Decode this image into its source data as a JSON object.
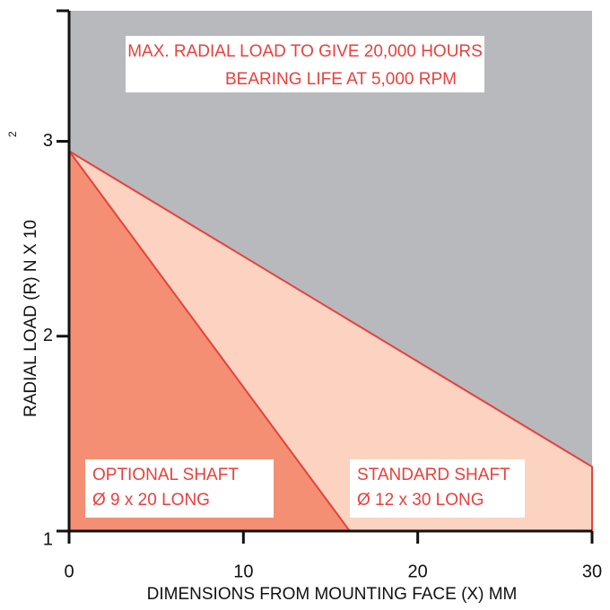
{
  "chart_data": {
    "type": "area",
    "title": [
      "MAX. RADIAL LOAD TO GIVE 20,000 HOURS",
      "BEARING LIFE AT 5,000 RPM"
    ],
    "xlabel": "DIMENSIONS FROM MOUNTING FACE (X) MM",
    "ylabel": "RADIAL LOAD (R)   N X 10",
    "ylabel_exponent": "2",
    "background_color": "#b8b9bd",
    "line_color": "#e8403c",
    "xlim": [
      0,
      30
    ],
    "xticks": [
      0,
      10,
      20,
      30
    ],
    "ylim": [
      1,
      3.67
    ],
    "yticks": [
      1,
      2,
      3
    ],
    "series": [
      {
        "name": "STANDARD SHAFT",
        "note": "Ø 12 x 30 LONG",
        "color": "#fcd3c1",
        "x": [
          0,
          30
        ],
        "values": [
          2.95,
          1.33
        ]
      },
      {
        "name": "OPTIONAL SHAFT",
        "note": "Ø 9 x 20 LONG",
        "color": "#f48f73",
        "x": [
          0,
          16.1
        ],
        "values": [
          2.95,
          1
        ]
      }
    ]
  }
}
